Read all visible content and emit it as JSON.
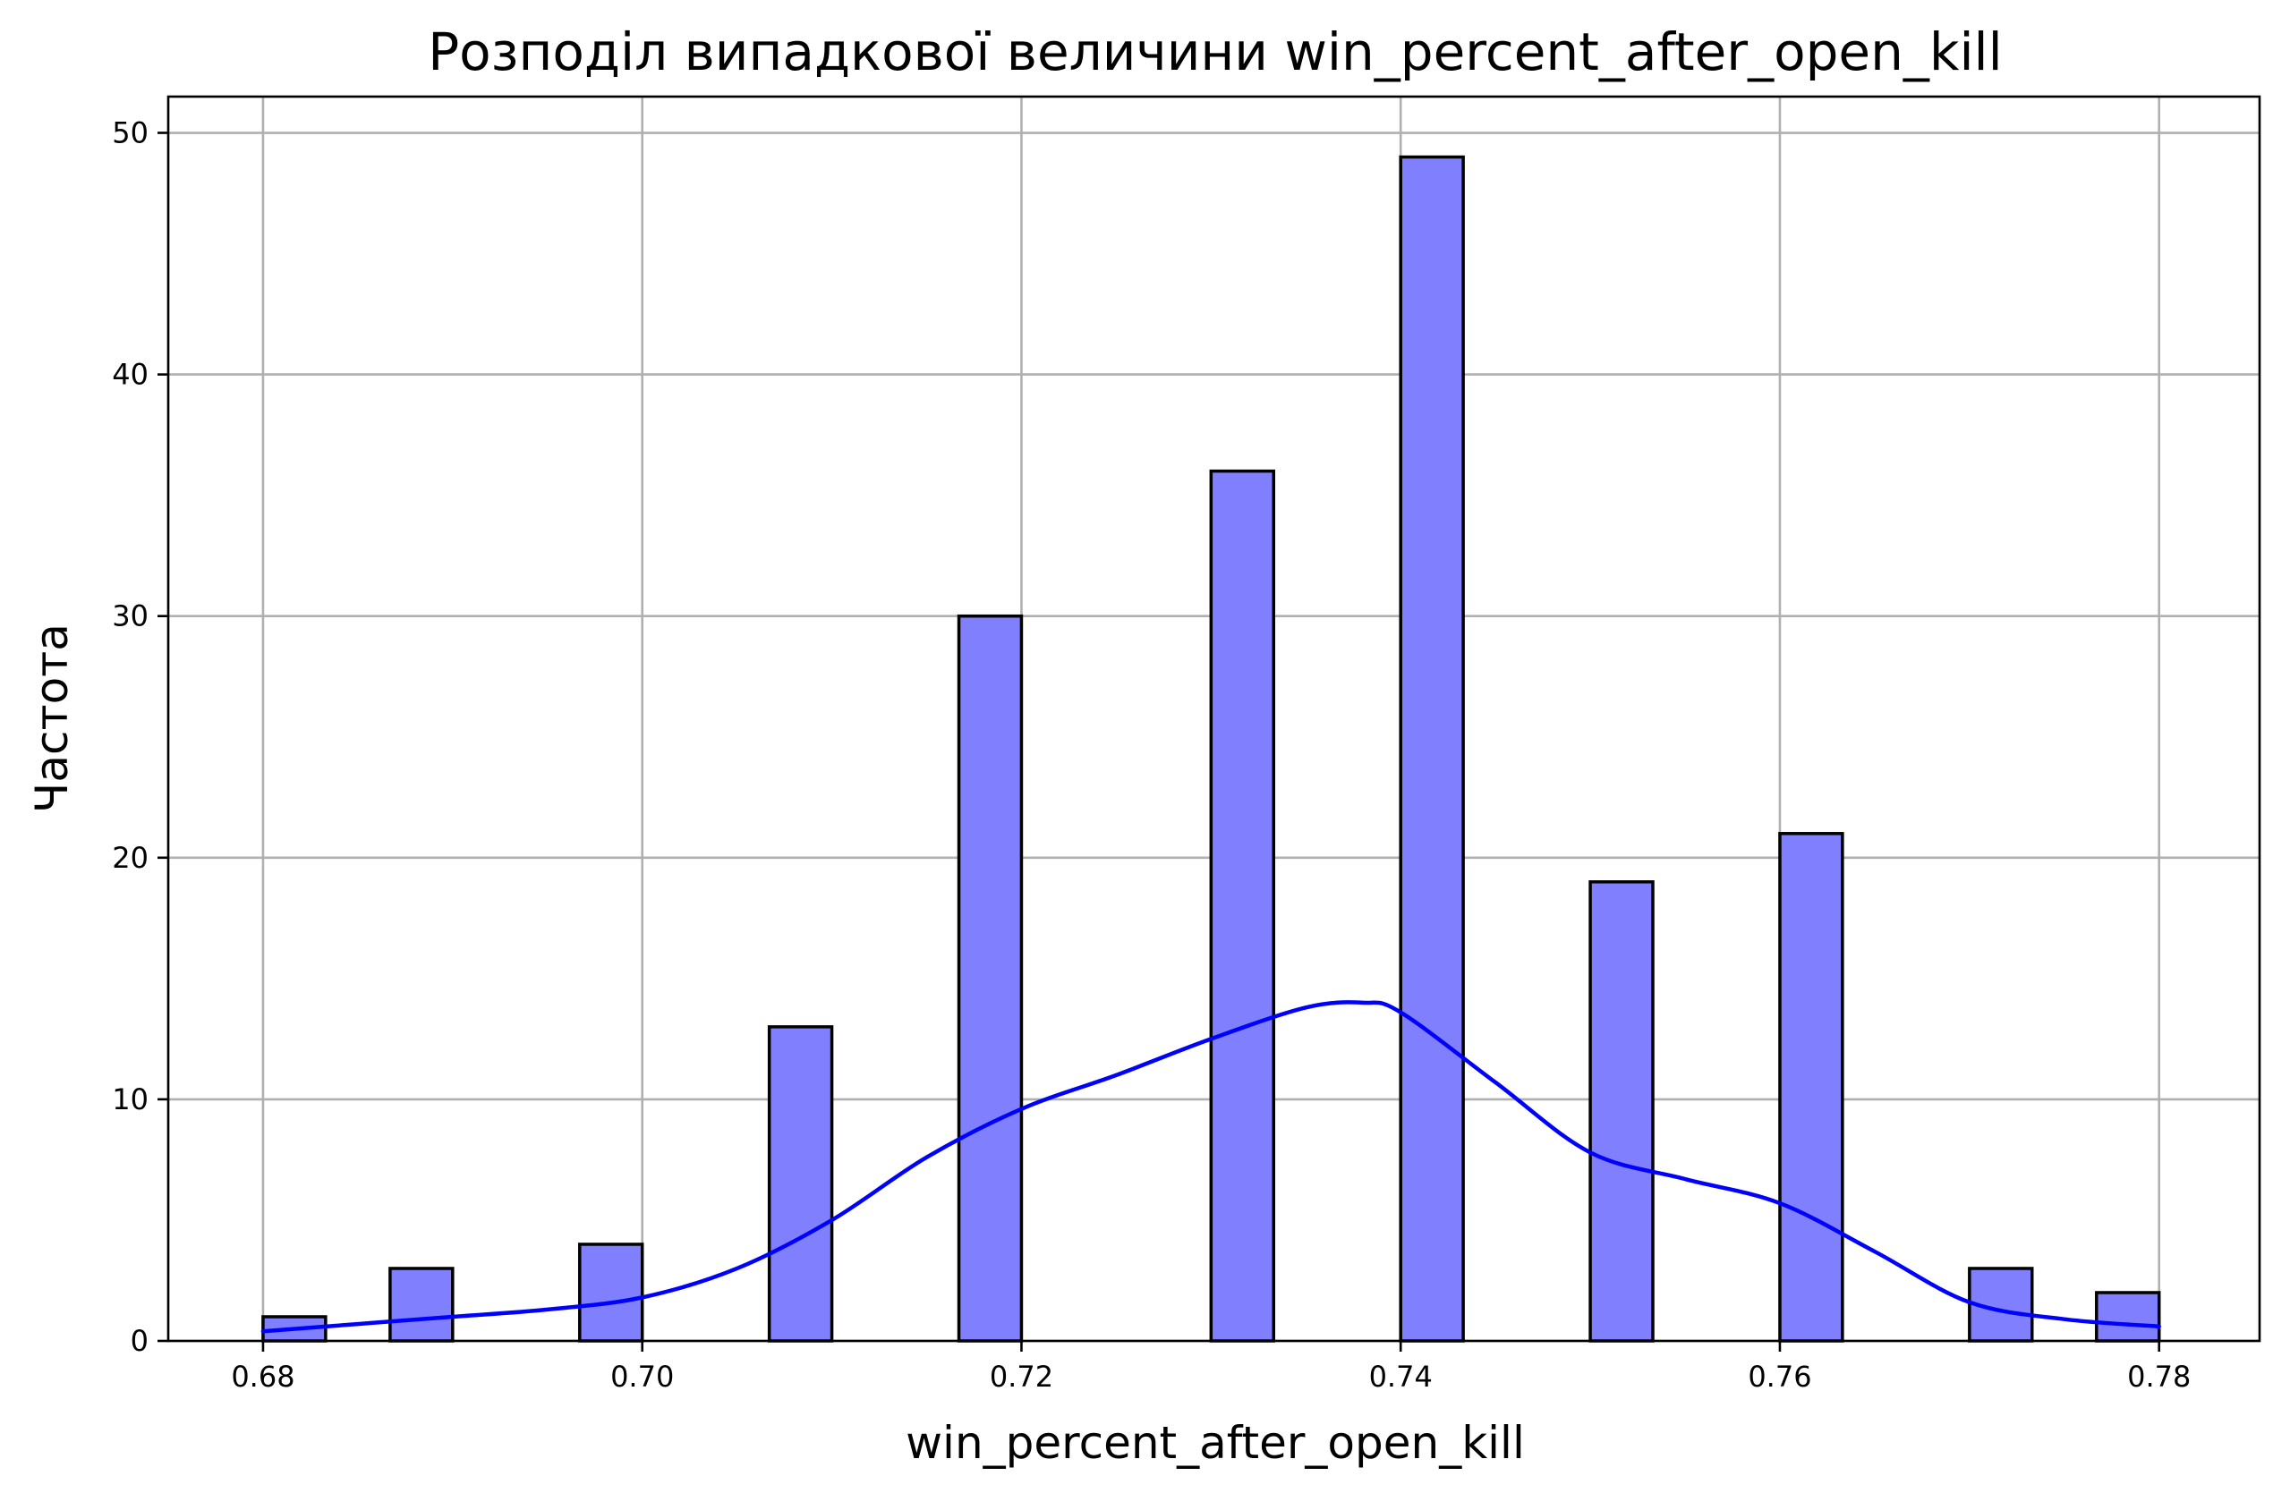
{
  "chart_data": {
    "type": "bar",
    "title": "Розподіл випадкової величини win_percent_after_open_kill",
    "xlabel": "win_percent_after_open_kill",
    "ylabel": "Частота",
    "xlim": [
      0.675,
      0.7853
    ],
    "ylim": [
      0,
      51.5
    ],
    "grid": true,
    "x_ticks": [
      {
        "value": 0.68,
        "label": "0.68"
      },
      {
        "value": 0.7,
        "label": "0.70"
      },
      {
        "value": 0.72,
        "label": "0.72"
      },
      {
        "value": 0.74,
        "label": "0.74"
      },
      {
        "value": 0.76,
        "label": "0.76"
      },
      {
        "value": 0.78,
        "label": "0.78"
      }
    ],
    "y_ticks": [
      {
        "value": 0,
        "label": "0"
      },
      {
        "value": 10,
        "label": "10"
      },
      {
        "value": 20,
        "label": "20"
      },
      {
        "value": 30,
        "label": "30"
      },
      {
        "value": 40,
        "label": "40"
      },
      {
        "value": 50,
        "label": "50"
      }
    ],
    "bins": [
      {
        "x0": 0.68,
        "x1": 0.6833,
        "count": 1
      },
      {
        "x0": 0.6867,
        "x1": 0.69,
        "count": 3
      },
      {
        "x0": 0.6967,
        "x1": 0.7,
        "count": 4
      },
      {
        "x0": 0.7067,
        "x1": 0.71,
        "count": 13
      },
      {
        "x0": 0.7167,
        "x1": 0.72,
        "count": 30
      },
      {
        "x0": 0.73,
        "x1": 0.7333,
        "count": 36
      },
      {
        "x0": 0.74,
        "x1": 0.7433,
        "count": 49
      },
      {
        "x0": 0.75,
        "x1": 0.7533,
        "count": 19
      },
      {
        "x0": 0.76,
        "x1": 0.7633,
        "count": 21
      },
      {
        "x0": 0.77,
        "x1": 0.7733,
        "count": 3
      },
      {
        "x0": 0.7767,
        "x1": 0.78,
        "count": 2
      }
    ],
    "kde": {
      "x": [
        0.68,
        0.685,
        0.69,
        0.695,
        0.7,
        0.705,
        0.71,
        0.715,
        0.72,
        0.725,
        0.73,
        0.735,
        0.738,
        0.74,
        0.745,
        0.75,
        0.755,
        0.76,
        0.765,
        0.77,
        0.775,
        0.78
      ],
      "y": [
        0.4,
        0.7,
        1.0,
        1.3,
        1.8,
        3.0,
        5.0,
        7.6,
        9.6,
        11.0,
        12.5,
        13.8,
        14.0,
        13.6,
        10.7,
        7.8,
        6.7,
        5.7,
        3.7,
        1.6,
        0.9,
        0.6
      ]
    },
    "colors": {
      "bar_fill": "#8080ff",
      "bar_edge": "#000000",
      "kde_line": "#0000ff",
      "grid": "#b0b0b0"
    }
  }
}
